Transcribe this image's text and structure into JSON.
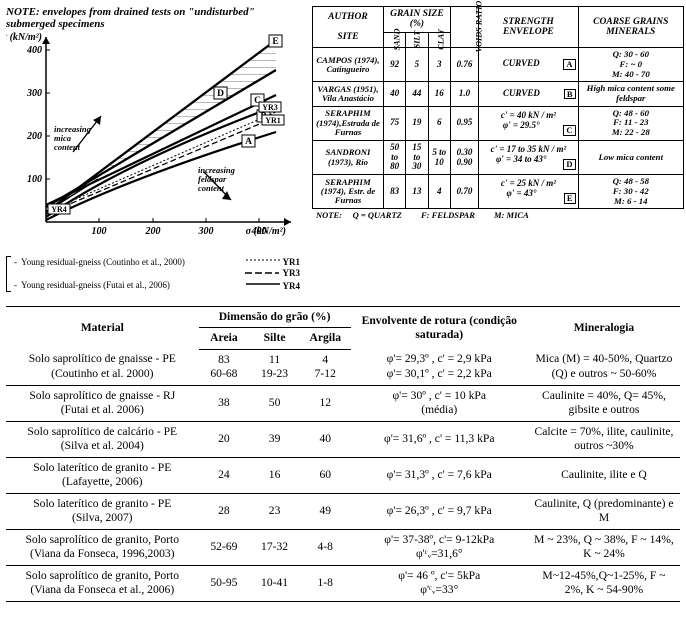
{
  "chart": {
    "note": "NOTE: envelopes from drained tests on \"undisturbed\" submerged specimens",
    "ylabel": "τ (kN/m²)",
    "xlabel": "σ (kN/m²)",
    "xlim": [
      0,
      450
    ],
    "ylim": [
      0,
      420
    ],
    "xtick_step": 100,
    "ytick_step": 100,
    "line_color": "#000000",
    "bg": "#ffffff",
    "inc_mica": "increasing mica content",
    "inc_felds": "increasing feldspar content",
    "tags": [
      "A",
      "B",
      "C",
      "D",
      "E",
      "YR1",
      "YR3",
      "YR4"
    ],
    "legend1": "Young residual-gneiss (Coutinho et al., 2000)",
    "legend2": "Young residual-gneiss (Futai et al., 2006)",
    "legend_lines": [
      "YR1",
      "YR3",
      "YR4"
    ]
  },
  "authorTable": {
    "headers": {
      "author": "AUTHOR",
      "site": "SITE",
      "grain": "GRAIN SIZE (%)",
      "sand": "SAND",
      "silt": "SILT",
      "clay": "CLAY",
      "voids": "VOIDS RATIO",
      "envelope": "STRENGTH ENVELOPE",
      "minerals": "COARSE GRAINS MINERALS"
    },
    "rows": [
      {
        "id": "A",
        "site": "CAMPOS (1974), Catingueiro",
        "sand": "92",
        "silt": "5",
        "clay": "3",
        "voids": "0.76",
        "env": "CURVED",
        "min": "Q: 30 - 60\nF: ~ 0\nM: 40 - 70"
      },
      {
        "id": "B",
        "site": "VARGAS (1951), Vila Anastácio",
        "sand": "40",
        "silt": "44",
        "clay": "16",
        "voids": "1.0",
        "env": "CURVED",
        "min": "High mica content some feldspar"
      },
      {
        "id": "C",
        "site": "SERAPHIM (1974),Estrada de Furnas",
        "sand": "75",
        "silt": "19",
        "clay": "6",
        "voids": "0.95",
        "env": "c' = 40 kN / m²\nφ' = 29.5°",
        "min": "Q: 48 - 60\nF: 11 - 23\nM: 22 - 28"
      },
      {
        "id": "D",
        "site": "SANDRONI (1973), Rio",
        "sand": "50 to 80",
        "silt": "15 to 30",
        "clay": "5 to 10",
        "voids": "0.30 0.90",
        "env": "c' = 17 to 35 kN / m²\nφ' = 34 to 43°",
        "min": "Low mica content"
      },
      {
        "id": "E",
        "site": "SERAPHIM (1974), Estr. de Furnas",
        "sand": "83",
        "silt": "13",
        "clay": "4",
        "voids": "0.70",
        "env": "c' = 25 kN / m²\nφ' = 43°",
        "min": "Q: 48 - 58\nF: 30 - 42\nM: 6 - 14"
      }
    ],
    "footnote": {
      "q": "Q = QUARTZ",
      "f": "F: FELDSPAR",
      "m": "M: MICA",
      "note": "NOTE:"
    }
  },
  "mainTable": {
    "headers": {
      "material": "Material",
      "grain": "Dimensão do grão (%)",
      "sand": "Areia",
      "silt": "Silte",
      "clay": "Argila",
      "envelope": "Envolvente de rotura (condição saturada)",
      "mineralogy": "Mineralogia"
    },
    "rows": [
      {
        "mat": "Solo saprolítico de gnaisse - PE\n(Coutinho et al. 2000)",
        "sand": "83\n60-68",
        "silt": "11\n19-23",
        "clay": "4\n7-12",
        "env": "φ'= 29,3º , c' = 2,9 kPa\nφ'= 30,1º , c' = 2,2 kPa",
        "min": "Mica (M) = 40-50%, Quartzo (Q) e outros ~ 50-60%"
      },
      {
        "mat": "Solo saprolítico de gnaisse - RJ\n(Futai et al. 2006)",
        "sand": "38",
        "silt": "50",
        "clay": "12",
        "env": "φ'= 30º , c' = 10 kPa\n(média)",
        "min": "Caulinite = 40%, Q= 45%, gibsite e outros"
      },
      {
        "mat": "Solo saprolítico de calcário -  PE\n(Silva et al. 2004)",
        "sand": "20",
        "silt": "39",
        "clay": "40",
        "env": "φ'= 31,6º , c' = 11,3 kPa",
        "min": "Calcite = 70%, ilite, caulinite, outros ~30%"
      },
      {
        "mat": "Solo laterítico de granito - PE\n(Lafayette, 2006)",
        "sand": "24",
        "silt": "16",
        "clay": "60",
        "env": "φ'= 31,3º , c' = 7,6 kPa",
        "min": "Caulinite, ilite e Q"
      },
      {
        "mat": "Solo laterítico de granito - PE\n(Silva, 2007)",
        "sand": "28",
        "silt": "23",
        "clay": "49",
        "env": "φ'= 26,3º , c' = 9,7 kPa",
        "min": "Caulinite, Q (predominante) e M"
      },
      {
        "mat": "Solo saprolítico de granito, Porto\n(Viana da Fonseca, 1996,2003)",
        "sand": "52-69",
        "silt": "17-32",
        "clay": "4-8",
        "env": "φ'= 37-38º, c'= 9-12kPa\nφ'ᶜᵥ=31,6°",
        "min": "M ~ 23%, Q ~ 38%, F ~ 14%, K ~ 24%"
      },
      {
        "mat": "Solo saprolítico de granito, Porto\n(Viana da Fonseca et al., 2006)",
        "sand": "50-95",
        "silt": "10-41",
        "clay": "1-8",
        "env": "φ'= 46 º, c'= 5kPa\nφ'ᶜᵥ=33°",
        "min": "M~12-45%,Q~1-25%, F ~ 2%, K ~ 54-90%"
      }
    ]
  }
}
